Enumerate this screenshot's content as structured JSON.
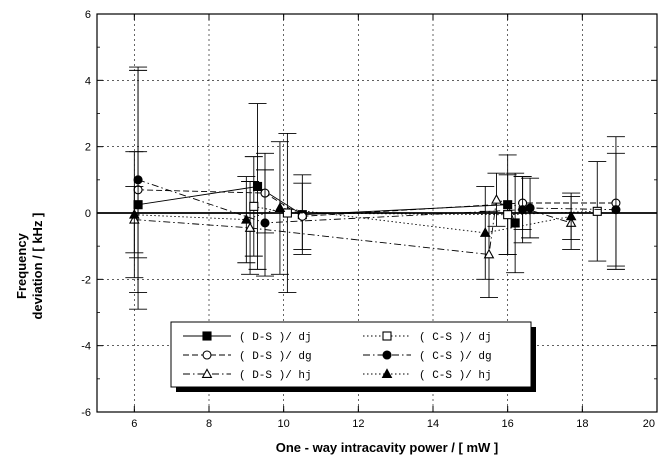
{
  "chart_data": {
    "type": "scatter",
    "title": "",
    "xlabel": "One - way intracavity power / [ mW ]",
    "ylabel_line1": "Frequency",
    "ylabel_line2": "deviation / [ kHz ]",
    "xlim": [
      5,
      20
    ],
    "ylim": [
      -6,
      6
    ],
    "x_ticks": [
      "6",
      "8",
      "10",
      "12",
      "14",
      "16",
      "18",
      "20"
    ],
    "y_ticks": [
      "-6",
      "-4",
      "-2",
      "0",
      "2",
      "4",
      "6"
    ],
    "grid": true,
    "legend_position": "bottom-left",
    "series": [
      {
        "name": "( D-S )/ dj",
        "marker": "square-filled",
        "line": "solid",
        "points": [
          {
            "x": 6.1,
            "y": 0.25,
            "err": 1.6
          },
          {
            "x": 9.3,
            "y": 0.8,
            "err": 2.5
          },
          {
            "x": 10.5,
            "y": -0.05,
            "err": 1.2
          },
          {
            "x": 16.0,
            "y": 0.25,
            "err": 1.5
          },
          {
            "x": 16.2,
            "y": -0.3,
            "err": 1.5
          }
        ]
      },
      {
        "name": "( D-S )/ dg",
        "marker": "circle-open",
        "line": "dashed",
        "points": [
          {
            "x": 6.1,
            "y": 0.7,
            "err": 3.6
          },
          {
            "x": 9.5,
            "y": 0.6,
            "err": 1.2
          },
          {
            "x": 10.5,
            "y": -0.1,
            "err": 1.0
          },
          {
            "x": 16.4,
            "y": 0.3,
            "err": 0.8
          },
          {
            "x": 18.9,
            "y": 0.3,
            "err": 2.0
          }
        ]
      },
      {
        "name": "( D-S )/ hj",
        "marker": "triangle-open",
        "line": "dashdot",
        "points": [
          {
            "x": 6.0,
            "y": -0.2,
            "err": 1.0
          },
          {
            "x": 9.1,
            "y": -0.45,
            "err": 1.4
          },
          {
            "x": 15.5,
            "y": -1.25,
            "err": 1.3
          },
          {
            "x": 15.7,
            "y": 0.4,
            "err": 0.8
          },
          {
            "x": 17.7,
            "y": -0.3,
            "err": 0.8
          }
        ]
      },
      {
        "name": "( C-S )/ dj",
        "marker": "square-open",
        "line": "dotted",
        "points": [
          {
            "x": 9.2,
            "y": 0.2,
            "err": 1.5
          },
          {
            "x": 10.1,
            "y": 0.0,
            "err": 2.4
          },
          {
            "x": 16.0,
            "y": -0.05,
            "err": 1.2
          },
          {
            "x": 18.4,
            "y": 0.05,
            "err": 1.5
          }
        ]
      },
      {
        "name": "( C-S )/ dg",
        "marker": "circle-filled",
        "line": "dashdot",
        "points": [
          {
            "x": 6.1,
            "y": 1.0,
            "err": 3.4
          },
          {
            "x": 9.5,
            "y": -0.3,
            "err": 1.6
          },
          {
            "x": 16.4,
            "y": 0.1,
            "err": 1.0
          },
          {
            "x": 16.6,
            "y": 0.15,
            "err": 0.9
          },
          {
            "x": 18.9,
            "y": 0.1,
            "err": 1.7
          }
        ]
      },
      {
        "name": "( C-S )/ hj",
        "marker": "triangle-filled",
        "line": "dotted",
        "points": [
          {
            "x": 6.0,
            "y": -0.05,
            "err": 1.9
          },
          {
            "x": 9.0,
            "y": -0.2,
            "err": 1.3
          },
          {
            "x": 9.9,
            "y": 0.15,
            "err": 2.0
          },
          {
            "x": 15.4,
            "y": -0.6,
            "err": 1.4
          },
          {
            "x": 17.7,
            "y": -0.1,
            "err": 0.7
          }
        ]
      }
    ]
  }
}
